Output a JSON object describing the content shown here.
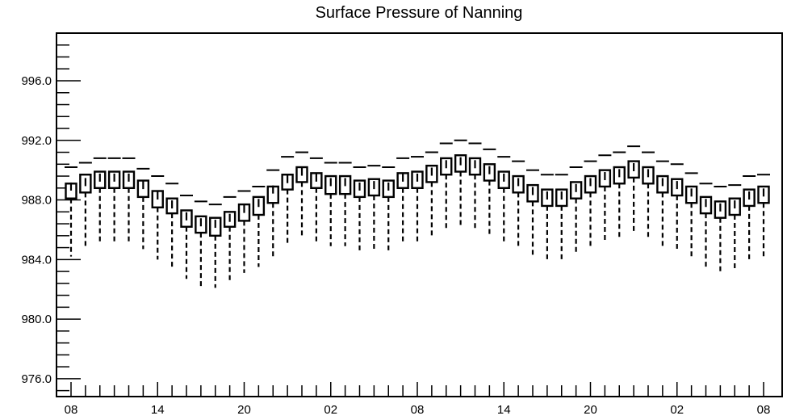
{
  "chart_data": {
    "type": "box",
    "title": "Surface Pressure of Nanning",
    "xlabel": "",
    "ylabel": "",
    "ylim": [
      974.8,
      999.2
    ],
    "y_major_ticks": [
      976.0,
      980.0,
      984.0,
      988.0,
      992.0,
      996.0
    ],
    "y_tick_labels": [
      "976.0",
      "980.0",
      "984.0",
      "988.0",
      "992.0",
      "996.0"
    ],
    "y_minor_step": 0.8,
    "x_tick_labels": [
      {
        "index": 0,
        "label": "08"
      },
      {
        "index": 6,
        "label": "14"
      },
      {
        "index": 12,
        "label": "20"
      },
      {
        "index": 18,
        "label": "02"
      },
      {
        "index": 24,
        "label": "08"
      },
      {
        "index": 30,
        "label": "14"
      },
      {
        "index": 36,
        "label": "20"
      },
      {
        "index": 42,
        "label": "02"
      },
      {
        "index": 48,
        "label": "08"
      }
    ],
    "x_tick_step_hours": 1,
    "boxes": [
      {
        "x": 0,
        "min": 984.2,
        "q1": 988.1,
        "median": 988.9,
        "q3": 989.1,
        "max": 990.2
      },
      {
        "x": 1,
        "min": 984.9,
        "q1": 988.5,
        "median": 989.2,
        "q3": 989.7,
        "max": 990.5
      },
      {
        "x": 2,
        "min": 985.1,
        "q1": 988.8,
        "median": 989.5,
        "q3": 989.9,
        "max": 990.8
      },
      {
        "x": 3,
        "min": 985.2,
        "q1": 988.8,
        "median": 989.5,
        "q3": 989.9,
        "max": 990.8
      },
      {
        "x": 4,
        "min": 985.2,
        "q1": 988.8,
        "median": 989.5,
        "q3": 989.9,
        "max": 990.8
      },
      {
        "x": 5,
        "min": 984.7,
        "q1": 988.2,
        "median": 989.0,
        "q3": 989.3,
        "max": 990.1
      },
      {
        "x": 6,
        "min": 984.0,
        "q1": 987.5,
        "median": 988.3,
        "q3": 988.6,
        "max": 989.6
      },
      {
        "x": 7,
        "min": 983.4,
        "q1": 987.1,
        "median": 987.7,
        "q3": 988.1,
        "max": 989.1
      },
      {
        "x": 8,
        "min": 982.7,
        "q1": 986.2,
        "median": 986.9,
        "q3": 987.3,
        "max": 988.3
      },
      {
        "x": 9,
        "min": 982.2,
        "q1": 985.8,
        "median": 986.5,
        "q3": 986.9,
        "max": 987.9
      },
      {
        "x": 10,
        "min": 982.1,
        "q1": 985.6,
        "median": 986.4,
        "q3": 986.8,
        "max": 987.7
      },
      {
        "x": 11,
        "min": 982.5,
        "q1": 986.2,
        "median": 986.8,
        "q3": 987.2,
        "max": 988.2
      },
      {
        "x": 12,
        "min": 983.1,
        "q1": 986.6,
        "median": 987.4,
        "q3": 987.7,
        "max": 988.6
      },
      {
        "x": 13,
        "min": 983.5,
        "q1": 987.0,
        "median": 987.8,
        "q3": 988.2,
        "max": 988.9
      },
      {
        "x": 14,
        "min": 984.2,
        "q1": 987.8,
        "median": 988.7,
        "q3": 988.9,
        "max": 990.0
      },
      {
        "x": 15,
        "min": 985.1,
        "q1": 988.7,
        "median": 989.4,
        "q3": 989.7,
        "max": 990.9
      },
      {
        "x": 16,
        "min": 985.5,
        "q1": 989.2,
        "median": 989.9,
        "q3": 990.2,
        "max": 991.2
      },
      {
        "x": 17,
        "min": 985.2,
        "q1": 988.8,
        "median": 989.5,
        "q3": 989.8,
        "max": 990.8
      },
      {
        "x": 18,
        "min": 984.9,
        "q1": 988.4,
        "median": 989.2,
        "q3": 989.6,
        "max": 990.5
      },
      {
        "x": 19,
        "min": 984.9,
        "q1": 988.4,
        "median": 989.2,
        "q3": 989.6,
        "max": 990.5
      },
      {
        "x": 20,
        "min": 984.5,
        "q1": 988.2,
        "median": 988.9,
        "q3": 989.3,
        "max": 990.2
      },
      {
        "x": 21,
        "min": 984.6,
        "q1": 988.3,
        "median": 989.0,
        "q3": 989.4,
        "max": 990.3
      },
      {
        "x": 22,
        "min": 984.5,
        "q1": 988.2,
        "median": 988.9,
        "q3": 989.3,
        "max": 990.2
      },
      {
        "x": 23,
        "min": 985.1,
        "q1": 988.8,
        "median": 989.5,
        "q3": 989.8,
        "max": 990.8
      },
      {
        "x": 24,
        "min": 985.1,
        "q1": 988.8,
        "median": 989.5,
        "q3": 989.9,
        "max": 990.9
      },
      {
        "x": 25,
        "min": 985.6,
        "q1": 989.2,
        "median": 989.9,
        "q3": 990.3,
        "max": 991.2
      },
      {
        "x": 26,
        "min": 986.1,
        "q1": 989.7,
        "median": 990.4,
        "q3": 990.8,
        "max": 991.8
      },
      {
        "x": 27,
        "min": 986.3,
        "q1": 989.9,
        "median": 990.6,
        "q3": 991.0,
        "max": 992.0
      },
      {
        "x": 28,
        "min": 986.0,
        "q1": 989.7,
        "median": 990.4,
        "q3": 990.8,
        "max": 991.8
      },
      {
        "x": 29,
        "min": 985.6,
        "q1": 989.3,
        "median": 990.0,
        "q3": 990.4,
        "max": 991.4
      },
      {
        "x": 30,
        "min": 985.1,
        "q1": 988.8,
        "median": 989.5,
        "q3": 989.9,
        "max": 990.9
      },
      {
        "x": 31,
        "min": 984.8,
        "q1": 988.5,
        "median": 989.2,
        "q3": 989.6,
        "max": 990.6
      },
      {
        "x": 32,
        "min": 984.2,
        "q1": 987.9,
        "median": 988.6,
        "q3": 989.0,
        "max": 990.0
      },
      {
        "x": 33,
        "min": 983.9,
        "q1": 987.6,
        "median": 988.3,
        "q3": 988.7,
        "max": 989.7
      },
      {
        "x": 34,
        "min": 983.9,
        "q1": 987.6,
        "median": 988.3,
        "q3": 988.7,
        "max": 989.7
      },
      {
        "x": 35,
        "min": 984.4,
        "q1": 988.1,
        "median": 988.8,
        "q3": 989.2,
        "max": 990.2
      },
      {
        "x": 36,
        "min": 984.8,
        "q1": 988.5,
        "median": 989.2,
        "q3": 989.6,
        "max": 990.6
      },
      {
        "x": 37,
        "min": 985.2,
        "q1": 988.9,
        "median": 989.6,
        "q3": 990.0,
        "max": 991.0
      },
      {
        "x": 38,
        "min": 985.4,
        "q1": 989.1,
        "median": 989.8,
        "q3": 990.2,
        "max": 991.2
      },
      {
        "x": 39,
        "min": 985.8,
        "q1": 989.5,
        "median": 990.2,
        "q3": 990.6,
        "max": 991.6
      },
      {
        "x": 40,
        "min": 985.4,
        "q1": 989.1,
        "median": 989.8,
        "q3": 990.2,
        "max": 991.2
      },
      {
        "x": 41,
        "min": 984.8,
        "q1": 988.5,
        "median": 989.2,
        "q3": 989.6,
        "max": 990.6
      },
      {
        "x": 42,
        "min": 984.6,
        "q1": 988.3,
        "median": 989.0,
        "q3": 989.4,
        "max": 990.4
      },
      {
        "x": 43,
        "min": 984.1,
        "q1": 987.8,
        "median": 988.5,
        "q3": 988.9,
        "max": 989.8
      },
      {
        "x": 44,
        "min": 983.4,
        "q1": 987.1,
        "median": 987.8,
        "q3": 988.2,
        "max": 989.1
      },
      {
        "x": 45,
        "min": 983.1,
        "q1": 986.8,
        "median": 987.5,
        "q3": 987.9,
        "max": 988.9
      },
      {
        "x": 46,
        "min": 983.3,
        "q1": 987.0,
        "median": 987.7,
        "q3": 988.1,
        "max": 989.0
      },
      {
        "x": 47,
        "min": 983.9,
        "q1": 987.6,
        "median": 988.3,
        "q3": 988.7,
        "max": 989.6
      },
      {
        "x": 48,
        "min": 984.1,
        "q1": 987.8,
        "median": 988.5,
        "q3": 988.9,
        "max": 989.7
      }
    ],
    "grid": false,
    "legend": "none",
    "colors": {
      "box": "#000000",
      "whisker": "#000000",
      "background": "#ffffff"
    }
  }
}
